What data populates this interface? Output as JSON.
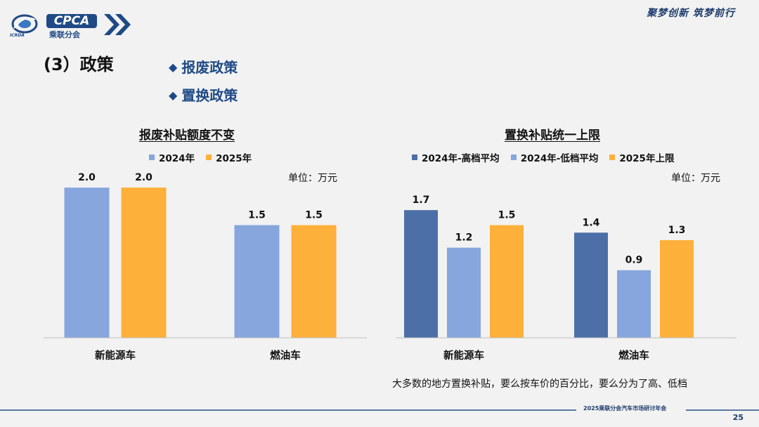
{
  "logo": {
    "badge": "CPCA",
    "sub": "乘联分会",
    "mini": "ICRDA"
  },
  "slogan": "聚梦创新 筑梦前行",
  "section_title": "(3）政策",
  "bullets": [
    "报废政策",
    "置换政策"
  ],
  "colors": {
    "blue_dark": "#4d6fa8",
    "blue_light": "#86a6dd",
    "orange": "#fdb03a",
    "brand": "#1f4a86"
  },
  "chart_data": [
    {
      "type": "bar",
      "title": "报废补贴额度不变",
      "unit": "单位：万元",
      "categories": [
        "新能源车",
        "燃油车"
      ],
      "series": [
        {
          "name": "2024年",
          "values": [
            2.0,
            1.5
          ],
          "labels": [
            "2.0",
            "1.5"
          ],
          "color": "#86a6dd"
        },
        {
          "name": "2025年",
          "values": [
            2.0,
            1.5
          ],
          "labels": [
            "2.0",
            "1.5"
          ],
          "color": "#fdb03a"
        }
      ],
      "ylim": [
        0,
        2.3
      ],
      "grid": false,
      "legend": "top"
    },
    {
      "type": "bar",
      "title": "置换补贴统一上限",
      "unit": "单位：万元",
      "categories": [
        "新能源车",
        "燃油车"
      ],
      "series": [
        {
          "name": "2024年-高档平均",
          "values": [
            1.7,
            1.4
          ],
          "labels": [
            "1.7",
            "1.4"
          ],
          "color": "#4d6fa8"
        },
        {
          "name": "2024年-低档平均",
          "values": [
            1.2,
            0.9
          ],
          "labels": [
            "1.2",
            "0.9"
          ],
          "color": "#86a6dd"
        },
        {
          "name": "2025年上限",
          "values": [
            1.5,
            1.3
          ],
          "labels": [
            "1.5",
            "1.3"
          ],
          "color": "#fdb03a"
        }
      ],
      "ylim": [
        0,
        2.3
      ],
      "grid": false,
      "legend": "top"
    }
  ],
  "note": "大多数的地方置换补贴，要么按车价的百分比，要么分为了高、低档",
  "footer": "2025乘联分会汽车市场研讨年会",
  "page_number": "25"
}
